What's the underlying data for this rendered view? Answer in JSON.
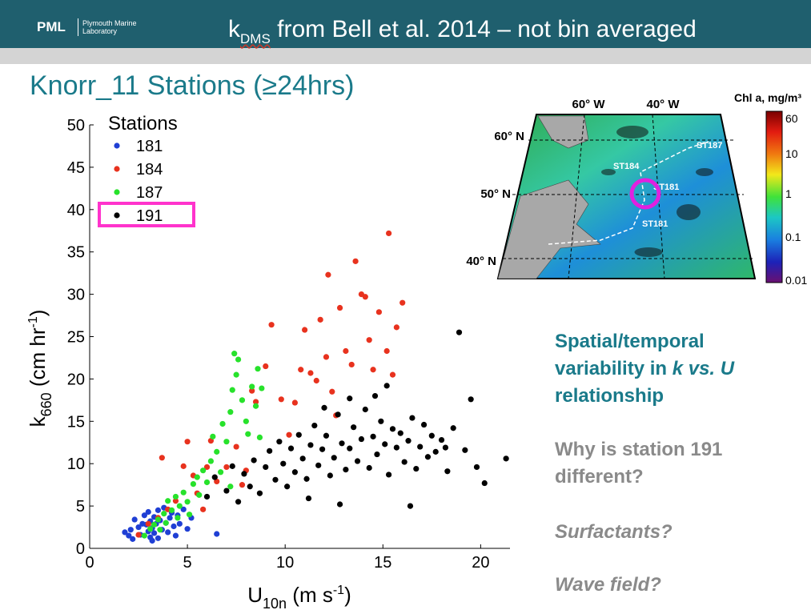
{
  "header": {
    "logo": "PML",
    "logo_sub": "Plymouth Marine Laboratory",
    "title_k": "k",
    "title_sub": "DMS",
    "title_rest": " from Bell et al. 2014 – not bin averaged"
  },
  "subtitle": "Knorr_11 Stations (≥24hrs)",
  "notes": {
    "line1a": "Spatial/temporal",
    "line1b_pre": "variability in ",
    "line1b_k": "k vs. U",
    "line1c": "relationship",
    "line2a": "Why is station 191",
    "line2b": "different?",
    "line3": "Surfactants?",
    "line4": "Wave field?"
  },
  "map": {
    "lon_labels": [
      "60° W",
      "40° W"
    ],
    "lat_labels": [
      "60° N",
      "50° N",
      "40° N"
    ],
    "colorbar_title": "Chl a, mg/m³",
    "colorbar_ticks": [
      "60",
      "10",
      "1",
      "0.1",
      "0.01"
    ],
    "station_labels": [
      "ST187",
      "ST184",
      "ST181",
      "ST181"
    ],
    "highlight_color": "#e020e0"
  },
  "chart_data": {
    "type": "scatter",
    "xlabel": "U10n (m s-1)",
    "ylabel": "k660 (cm hr-1)",
    "xlim": [
      0,
      21.5
    ],
    "ylim": [
      0,
      50
    ],
    "xticks": [
      0,
      5,
      10,
      15,
      20
    ],
    "yticks": [
      0,
      5,
      10,
      15,
      20,
      25,
      30,
      35,
      40,
      45,
      50
    ],
    "legend_title": "Stations",
    "legend_position": "top-left",
    "highlight_box_color": "#ff33cc",
    "series": [
      {
        "name": "181",
        "color": "#1f3fd4",
        "points": [
          [
            1.8,
            1.9
          ],
          [
            2.0,
            1.5
          ],
          [
            2.1,
            2.2
          ],
          [
            2.2,
            1.1
          ],
          [
            2.3,
            3.4
          ],
          [
            2.5,
            2.5
          ],
          [
            2.6,
            1.6
          ],
          [
            2.8,
            3.9
          ],
          [
            2.9,
            2.8
          ],
          [
            3.0,
            2.0
          ],
          [
            3.0,
            4.3
          ],
          [
            3.1,
            3.2
          ],
          [
            3.1,
            1.3
          ],
          [
            3.2,
            2.4
          ],
          [
            3.3,
            3.7
          ],
          [
            3.3,
            1.8
          ],
          [
            3.4,
            2.9
          ],
          [
            3.5,
            4.5
          ],
          [
            3.5,
            1.2
          ],
          [
            3.6,
            3.3
          ],
          [
            3.7,
            2.2
          ],
          [
            3.8,
            4.8
          ],
          [
            3.9,
            3.0
          ],
          [
            4.0,
            1.9
          ],
          [
            4.1,
            3.6
          ],
          [
            4.2,
            4.2
          ],
          [
            4.3,
            2.6
          ],
          [
            4.4,
            1.5
          ],
          [
            4.5,
            3.9
          ],
          [
            4.6,
            2.9
          ],
          [
            4.8,
            4.6
          ],
          [
            5.0,
            2.3
          ],
          [
            5.2,
            3.6
          ],
          [
            6.5,
            1.7
          ],
          [
            3.2,
            0.9
          ],
          [
            2.7,
            2.9
          ]
        ]
      },
      {
        "name": "184",
        "color": "#e8321e",
        "points": [
          [
            2.5,
            1.6
          ],
          [
            3.0,
            2.9
          ],
          [
            3.5,
            3.6
          ],
          [
            3.7,
            10.7
          ],
          [
            4.0,
            4.6
          ],
          [
            4.4,
            5.6
          ],
          [
            4.8,
            9.7
          ],
          [
            5.3,
            8.6
          ],
          [
            5.5,
            6.5
          ],
          [
            5.8,
            4.6
          ],
          [
            6.0,
            9.6
          ],
          [
            6.2,
            12.7
          ],
          [
            5.0,
            12.6
          ],
          [
            6.5,
            7.9
          ],
          [
            7.0,
            9.6
          ],
          [
            7.5,
            12.0
          ],
          [
            7.8,
            7.5
          ],
          [
            8.0,
            9.2
          ],
          [
            8.3,
            18.6
          ],
          [
            8.5,
            17.3
          ],
          [
            9.0,
            21.5
          ],
          [
            9.3,
            26.4
          ],
          [
            9.8,
            17.6
          ],
          [
            10.2,
            13.4
          ],
          [
            10.5,
            17.2
          ],
          [
            10.8,
            21.1
          ],
          [
            11.0,
            25.8
          ],
          [
            11.3,
            20.7
          ],
          [
            11.6,
            19.8
          ],
          [
            11.8,
            27.0
          ],
          [
            12.1,
            22.6
          ],
          [
            12.4,
            18.5
          ],
          [
            12.6,
            15.7
          ],
          [
            12.8,
            28.4
          ],
          [
            13.1,
            23.3
          ],
          [
            13.4,
            21.7
          ],
          [
            13.6,
            33.9
          ],
          [
            13.9,
            30.0
          ],
          [
            14.1,
            29.7
          ],
          [
            14.3,
            24.6
          ],
          [
            14.5,
            21.1
          ],
          [
            14.8,
            27.9
          ],
          [
            15.2,
            23.3
          ],
          [
            15.5,
            20.5
          ],
          [
            16.0,
            29.0
          ],
          [
            15.3,
            37.2
          ],
          [
            15.7,
            26.1
          ],
          [
            12.2,
            32.3
          ]
        ]
      },
      {
        "name": "187",
        "color": "#27e22b",
        "points": [
          [
            2.8,
            1.5
          ],
          [
            3.1,
            2.3
          ],
          [
            3.3,
            2.8
          ],
          [
            3.5,
            3.4
          ],
          [
            3.6,
            2.2
          ],
          [
            3.8,
            4.1
          ],
          [
            3.9,
            3.0
          ],
          [
            4.0,
            5.6
          ],
          [
            4.2,
            4.5
          ],
          [
            4.4,
            6.1
          ],
          [
            4.5,
            3.6
          ],
          [
            4.6,
            5.0
          ],
          [
            4.8,
            6.6
          ],
          [
            5.0,
            5.5
          ],
          [
            5.1,
            4.0
          ],
          [
            5.3,
            7.6
          ],
          [
            5.5,
            8.4
          ],
          [
            5.6,
            6.3
          ],
          [
            5.8,
            9.2
          ],
          [
            6.0,
            7.8
          ],
          [
            6.2,
            10.3
          ],
          [
            6.3,
            13.2
          ],
          [
            6.5,
            11.4
          ],
          [
            6.7,
            9.0
          ],
          [
            6.8,
            14.7
          ],
          [
            7.0,
            12.6
          ],
          [
            7.2,
            16.1
          ],
          [
            7.3,
            18.7
          ],
          [
            7.5,
            20.5
          ],
          [
            7.6,
            22.3
          ],
          [
            7.8,
            17.5
          ],
          [
            8.0,
            15.0
          ],
          [
            8.1,
            13.5
          ],
          [
            8.3,
            19.1
          ],
          [
            8.5,
            16.8
          ],
          [
            8.6,
            21.2
          ],
          [
            8.8,
            18.9
          ],
          [
            7.4,
            23.0
          ],
          [
            8.7,
            13.1
          ],
          [
            7.2,
            7.3
          ]
        ]
      },
      {
        "name": "191",
        "color": "#000000",
        "points": [
          [
            6.0,
            6.1
          ],
          [
            6.4,
            8.4
          ],
          [
            7.0,
            6.8
          ],
          [
            7.3,
            9.7
          ],
          [
            7.6,
            5.5
          ],
          [
            7.9,
            8.8
          ],
          [
            8.2,
            7.3
          ],
          [
            8.4,
            10.4
          ],
          [
            8.7,
            6.5
          ],
          [
            9.0,
            9.6
          ],
          [
            9.2,
            11.5
          ],
          [
            9.5,
            8.1
          ],
          [
            9.7,
            12.6
          ],
          [
            9.9,
            10.0
          ],
          [
            10.1,
            7.3
          ],
          [
            10.3,
            11.8
          ],
          [
            10.5,
            9.0
          ],
          [
            10.7,
            13.4
          ],
          [
            10.9,
            10.6
          ],
          [
            11.1,
            8.2
          ],
          [
            11.3,
            12.2
          ],
          [
            11.5,
            14.5
          ],
          [
            11.7,
            9.8
          ],
          [
            11.9,
            11.7
          ],
          [
            12.1,
            13.3
          ],
          [
            12.3,
            8.6
          ],
          [
            12.5,
            10.7
          ],
          [
            12.7,
            15.8
          ],
          [
            12.9,
            12.4
          ],
          [
            13.1,
            9.3
          ],
          [
            13.3,
            11.8
          ],
          [
            13.5,
            14.3
          ],
          [
            13.7,
            10.3
          ],
          [
            13.9,
            12.9
          ],
          [
            14.1,
            16.4
          ],
          [
            14.3,
            9.5
          ],
          [
            14.5,
            13.2
          ],
          [
            14.7,
            11.1
          ],
          [
            14.9,
            15.0
          ],
          [
            15.1,
            12.3
          ],
          [
            15.3,
            8.7
          ],
          [
            15.5,
            14.1
          ],
          [
            15.7,
            11.9
          ],
          [
            15.9,
            13.6
          ],
          [
            16.1,
            10.2
          ],
          [
            16.3,
            12.7
          ],
          [
            16.5,
            15.4
          ],
          [
            16.7,
            9.4
          ],
          [
            16.9,
            12.0
          ],
          [
            17.1,
            14.6
          ],
          [
            17.3,
            10.8
          ],
          [
            17.5,
            13.3
          ],
          [
            17.7,
            11.4
          ],
          [
            18.0,
            12.8
          ],
          [
            18.3,
            9.1
          ],
          [
            18.6,
            14.2
          ],
          [
            18.9,
            25.5
          ],
          [
            19.2,
            11.6
          ],
          [
            19.5,
            17.6
          ],
          [
            19.8,
            9.6
          ],
          [
            20.2,
            7.7
          ],
          [
            21.3,
            10.6
          ],
          [
            11.2,
            5.9
          ],
          [
            12.8,
            5.2
          ],
          [
            16.4,
            5.0
          ],
          [
            14.6,
            18.0
          ],
          [
            15.2,
            19.2
          ],
          [
            13.3,
            17.7
          ],
          [
            12.0,
            16.6
          ],
          [
            18.2,
            11.9
          ]
        ]
      }
    ]
  }
}
